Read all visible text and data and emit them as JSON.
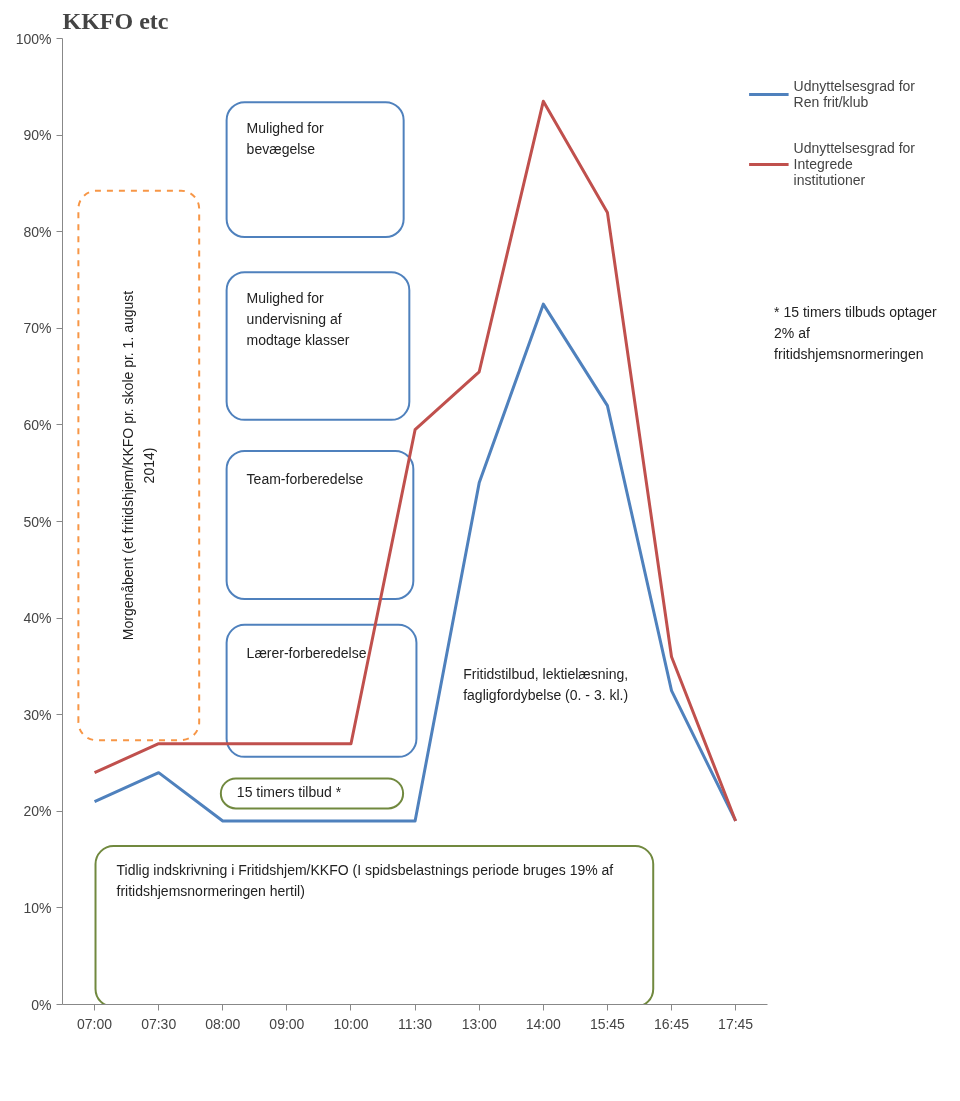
{
  "chart_data": {
    "type": "line",
    "title": "KKFO etc",
    "categories": [
      "07:00",
      "07:30",
      "08:00",
      "09:00",
      "10:00",
      "11:30",
      "13:00",
      "14:00",
      "15:45",
      "16:45",
      "17:45"
    ],
    "series": [
      {
        "name": "Udnyttelsesgrad for Ren frit/klub",
        "color": "#4f81bd",
        "values": [
          21,
          24,
          19,
          19,
          19,
          19,
          54,
          72.5,
          62,
          32.5,
          19
        ]
      },
      {
        "name": "Udnyttelsesgrad for Integrede institutioner",
        "color": "#c0504d",
        "values": [
          24,
          27,
          27,
          27,
          27,
          59.5,
          65.5,
          93.5,
          82,
          36,
          19
        ]
      }
    ],
    "ylim": [
      0,
      100
    ],
    "yticks": [
      {
        "value": 0,
        "label": "0%"
      },
      {
        "value": 10,
        "label": "10%"
      },
      {
        "value": 20,
        "label": "20%"
      },
      {
        "value": 30,
        "label": "30%"
      },
      {
        "value": 40,
        "label": "40%"
      },
      {
        "value": 50,
        "label": "50%"
      },
      {
        "value": 60,
        "label": "60%"
      },
      {
        "value": 70,
        "label": "70%"
      },
      {
        "value": 80,
        "label": "80%"
      },
      {
        "value": 90,
        "label": "90%"
      },
      {
        "value": 100,
        "label": "100%"
      }
    ],
    "grid": false,
    "legend": "top right",
    "annotations": [
      "Mulighed for bevægelse",
      "Mulighed for undervisning af modtage klasser",
      "Team-forberedelse",
      "Lærer-forberedelse",
      "15 timers tilbud *",
      "Tidlig indskrivning i Fritidshjem/KKFO (I spidsbelastnings periode bruges 19% af fritidshjemsnormeringen hertil)",
      "Morgenåbent (et fritidshjem/KKFO pr. skole pr. 1. august 2014)",
      "Fritidstilbud, lektielæsning, fagligfordybelse (0. - 3. kl.)",
      "* 15 timers tilbuds optager 2% af fritidshjemsnormeringen"
    ]
  }
}
